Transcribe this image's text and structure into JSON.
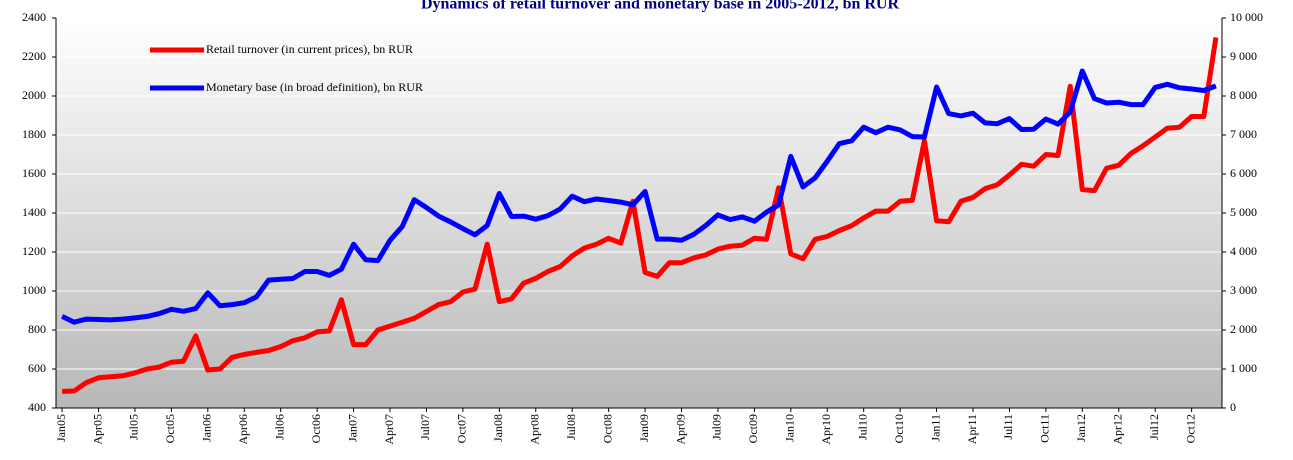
{
  "chart_data": {
    "type": "line",
    "title": "Dynamics of retail turnover and monetary base in 2005-2012, bn RUR",
    "categories": [
      "Jan05",
      null,
      null,
      "Apr05",
      null,
      null,
      "Jul05",
      null,
      null,
      "Oct05",
      null,
      null,
      "Jan06",
      null,
      null,
      "Apr06",
      null,
      null,
      "Jul06",
      null,
      null,
      "Oct06",
      null,
      null,
      "Jan07",
      null,
      null,
      "Apr07",
      null,
      null,
      "Jul07",
      null,
      null,
      "Oct07",
      null,
      null,
      "Jan08",
      null,
      null,
      "Apr08",
      null,
      null,
      "Jul08",
      null,
      null,
      "Oct08",
      null,
      null,
      "Jan09",
      null,
      null,
      "Apr09",
      null,
      null,
      "Jul09",
      null,
      null,
      "Oct09",
      null,
      null,
      "Jan10",
      null,
      null,
      "Apr10",
      null,
      null,
      "Jul10",
      null,
      null,
      "Oct10",
      null,
      null,
      "Jan11",
      null,
      null,
      "Apr11",
      null,
      null,
      "Jul11",
      null,
      null,
      "Oct11",
      null,
      null,
      "Jan12",
      null,
      null,
      "Apr12",
      null,
      null,
      "Jul12",
      null,
      null,
      "Oct12",
      null,
      null
    ],
    "series": [
      {
        "name": "Retail turnover (in current prices), bn RUR",
        "color": "#ff0000",
        "values": [
          485,
          487,
          530,
          555,
          560,
          565,
          580,
          600,
          610,
          635,
          640,
          770,
          595,
          600,
          660,
          675,
          685,
          695,
          715,
          745,
          760,
          790,
          795,
          955,
          725,
          725,
          800,
          820,
          840,
          860,
          895,
          930,
          945,
          995,
          1010,
          1240,
          945,
          960,
          1040,
          1065,
          1100,
          1125,
          1180,
          1220,
          1240,
          1270,
          1245,
          1460,
          1095,
          1075,
          1145,
          1145,
          1170,
          1185,
          1215,
          1230,
          1235,
          1270,
          1265,
          1530,
          1190,
          1165,
          1265,
          1280,
          1310,
          1335,
          1375,
          1410,
          1410,
          1460,
          1465,
          1770,
          1360,
          1355,
          1460,
          1480,
          1525,
          1545,
          1595,
          1650,
          1640,
          1700,
          1695,
          2050,
          1520,
          1515,
          1630,
          1645,
          1705,
          1745,
          1790,
          1835,
          1840,
          1895,
          1895,
          2300
        ]
      },
      {
        "name": "Monetary base (in broad definition), bn RUR",
        "color": "#0000ff",
        "axis": "y2",
        "values": [
          2350,
          2200,
          2280,
          2270,
          2260,
          2280,
          2310,
          2350,
          2420,
          2530,
          2480,
          2550,
          2950,
          2620,
          2650,
          2700,
          2850,
          3280,
          3300,
          3320,
          3500,
          3500,
          3400,
          3560,
          4200,
          3800,
          3780,
          4300,
          4650,
          5340,
          5140,
          4920,
          4770,
          4600,
          4440,
          4680,
          5500,
          4910,
          4920,
          4840,
          4930,
          5100,
          5430,
          5290,
          5360,
          5320,
          5280,
          5210,
          5550,
          4330,
          4330,
          4300,
          4450,
          4680,
          4950,
          4830,
          4900,
          4790,
          5020,
          5210,
          6450,
          5670,
          5900,
          6330,
          6780,
          6850,
          7200,
          7060,
          7200,
          7130,
          6960,
          6950,
          8230,
          7550,
          7490,
          7560,
          7310,
          7290,
          7420,
          7140,
          7150,
          7410,
          7280,
          7590,
          8640,
          7930,
          7820,
          7840,
          7780,
          7780,
          8220,
          8300,
          8210,
          8180,
          8140,
          8260
        ]
      }
    ],
    "ylim": [
      400,
      2400
    ],
    "yticks": [
      400,
      600,
      800,
      1000,
      1200,
      1400,
      1600,
      1800,
      2000,
      2200,
      2400
    ],
    "y2lim": [
      0,
      10000
    ],
    "y2ticks": [
      0,
      {
        "value": 1000,
        "label": "1 000"
      },
      {
        "value": 2000,
        "label": "2 000"
      },
      {
        "value": 3000,
        "label": "3 000"
      },
      {
        "value": 4000,
        "label": "4 000"
      },
      {
        "value": 5000,
        "label": "5 000"
      },
      {
        "value": 6000,
        "label": "6 000"
      },
      {
        "value": 7000,
        "label": "7 000"
      },
      {
        "value": 8000,
        "label": "8 000"
      },
      {
        "value": 9000,
        "label": "9 000"
      },
      {
        "value": 10000,
        "label": "10 000"
      }
    ],
    "grid": true
  }
}
